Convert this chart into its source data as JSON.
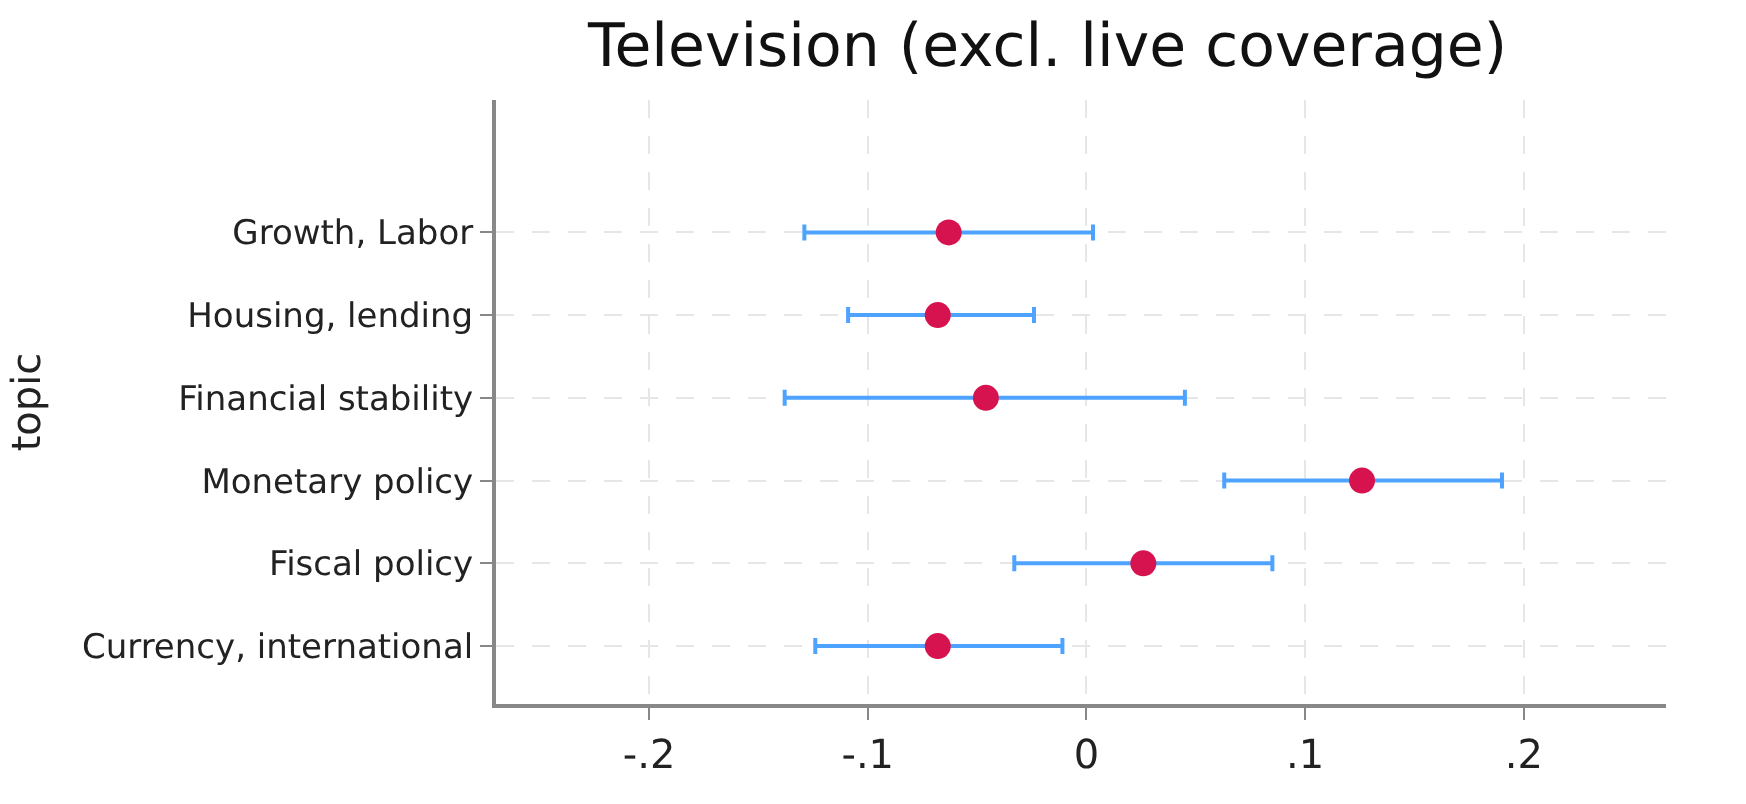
{
  "chart_data": {
    "type": "scatter",
    "orientation": "horizontal",
    "title": "Television (excl. live coverage)",
    "ylabel": "topic",
    "categories": [
      "Growth, Labor",
      "Housing, lending",
      "Financial stability",
      "Monetary policy",
      "Fiscal policy",
      "Currency, international"
    ],
    "color": "#d7134f",
    "values": [
      -0.063,
      -0.068,
      -0.046,
      0.126,
      0.026,
      -0.068
    ],
    "errors": [
      [
        -0.129,
        0.003
      ],
      [
        -0.109,
        -0.024
      ],
      [
        -0.138,
        0.045
      ],
      [
        0.063,
        0.19
      ],
      [
        -0.033,
        0.085
      ],
      [
        -0.124,
        -0.011
      ]
    ],
    "xlim": [
      -0.27,
      0.265
    ],
    "xticks": [
      {
        "value": -0.2,
        "label": "-.2"
      },
      {
        "value": -0.1,
        "label": "-.1"
      },
      0,
      {
        "value": 0.1,
        "label": ".1"
      },
      {
        "value": 0.2,
        "label": ".2"
      }
    ],
    "grid": true,
    "marker": "circle"
  }
}
